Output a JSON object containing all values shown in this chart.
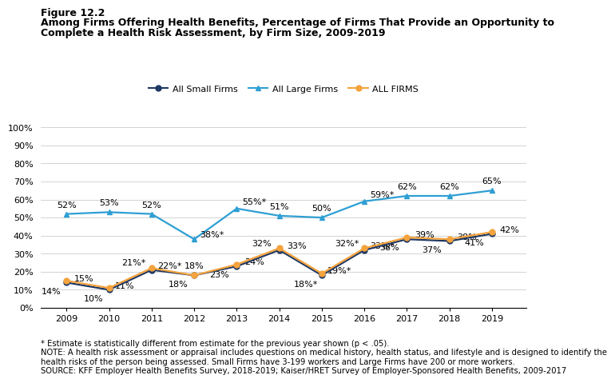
{
  "years": [
    2009,
    2010,
    2011,
    2012,
    2013,
    2014,
    2015,
    2016,
    2017,
    2018,
    2019
  ],
  "small_firms": [
    14,
    10,
    21,
    18,
    23,
    32,
    18,
    32,
    38,
    37,
    41
  ],
  "large_firms": [
    52,
    53,
    52,
    38,
    55,
    51,
    50,
    59,
    62,
    62,
    65
  ],
  "all_firms": [
    15,
    11,
    22,
    18,
    24,
    33,
    19,
    33,
    39,
    38,
    42
  ],
  "small_labels": [
    "14%",
    "10%",
    "21%*",
    "18%",
    "23%",
    "32%",
    "18%*",
    "32%*",
    "38%",
    "37%",
    "41%"
  ],
  "large_labels": [
    "52%",
    "53%",
    "52%",
    "38%*",
    "55%*",
    "51%",
    "50%",
    "59%*",
    "62%",
    "62%",
    "65%"
  ],
  "all_labels": [
    "15%",
    "11%",
    "22%*",
    "18%",
    "24%",
    "33%",
    "19%*",
    "33%*",
    "39%",
    "38%",
    "42%"
  ],
  "small_color": "#1f3864",
  "large_color": "#2e9fd4",
  "all_color": "#f4a33d",
  "figure_label": "Figure 12.2",
  "title_line1": "Among Firms Offering Health Benefits, Percentage of Firms That Provide an Opportunity to",
  "title_line2": "Complete a Health Risk Assessment, by Firm Size, 2009-2019",
  "legend_labels": [
    "All Small Firms",
    "All Large Firms",
    "ALL FIRMS"
  ],
  "ytick_vals": [
    0,
    10,
    20,
    30,
    40,
    50,
    60,
    70,
    80,
    90,
    100
  ],
  "ylabel_ticks": [
    "0%",
    "10%",
    "20%",
    "30%",
    "40%",
    "50%",
    "60%",
    "70%",
    "80%",
    "90%",
    "100%"
  ],
  "footnote1": "* Estimate is statistically different from estimate for the previous year shown (p < .05).",
  "footnote2": "NOTE: A health risk assessment or appraisal includes questions on medical history, health status, and lifestyle and is designed to identify the",
  "footnote3": "health risks of the person being assessed. Small Firms have 3-199 workers and Large Firms have 200 or more workers.",
  "footnote4": "SOURCE: KFF Employer Health Benefits Survey, 2018-2019; Kaiser/HRET Survey of Employer-Sponsored Health Benefits, 2009-2017",
  "bg_color": "#ffffff"
}
